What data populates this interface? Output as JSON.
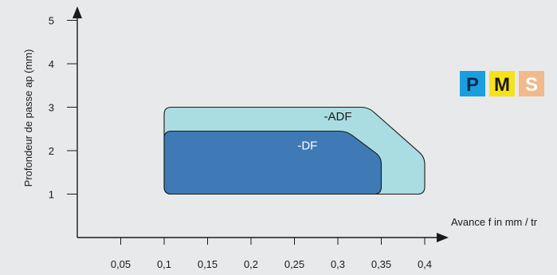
{
  "chart_data": {
    "type": "area",
    "xlabel": "Avance f in mm / tr",
    "ylabel": "Profondeur de passe ap (mm)",
    "x_ticks": [
      "0,05",
      "0,1",
      "0,15",
      "0,2",
      "0,25",
      "0,3",
      "0,35",
      "0,4"
    ],
    "x_tick_values": [
      0.05,
      0.1,
      0.15,
      0.2,
      0.25,
      0.3,
      0.35,
      0.4
    ],
    "y_ticks": [
      "1",
      "2",
      "3",
      "4",
      "5"
    ],
    "y_tick_values": [
      1,
      2,
      3,
      4,
      5
    ],
    "xlim": [
      0,
      0.42
    ],
    "ylim": [
      0,
      5.5
    ],
    "grid": false,
    "series": [
      {
        "name": "-ADF",
        "color": "#a9dde2",
        "polygon": [
          [
            0.1,
            1.0
          ],
          [
            0.4,
            1.0
          ],
          [
            0.4,
            1.85
          ],
          [
            0.335,
            3.0
          ],
          [
            0.1,
            3.0
          ]
        ]
      },
      {
        "name": "-DF",
        "color": "#3f7ab7",
        "polygon": [
          [
            0.1,
            1.0
          ],
          [
            0.35,
            1.0
          ],
          [
            0.35,
            1.85
          ],
          [
            0.31,
            2.45
          ],
          [
            0.1,
            2.45
          ]
        ]
      }
    ]
  },
  "badges": [
    {
      "letter": "P",
      "bg": "#1a9fde",
      "fg": "#0b2b52"
    },
    {
      "letter": "M",
      "bg": "#f5e21b",
      "fg": "#1a1a1a"
    },
    {
      "letter": "S",
      "bg": "#f2b98a",
      "fg": "#ffffff"
    }
  ]
}
